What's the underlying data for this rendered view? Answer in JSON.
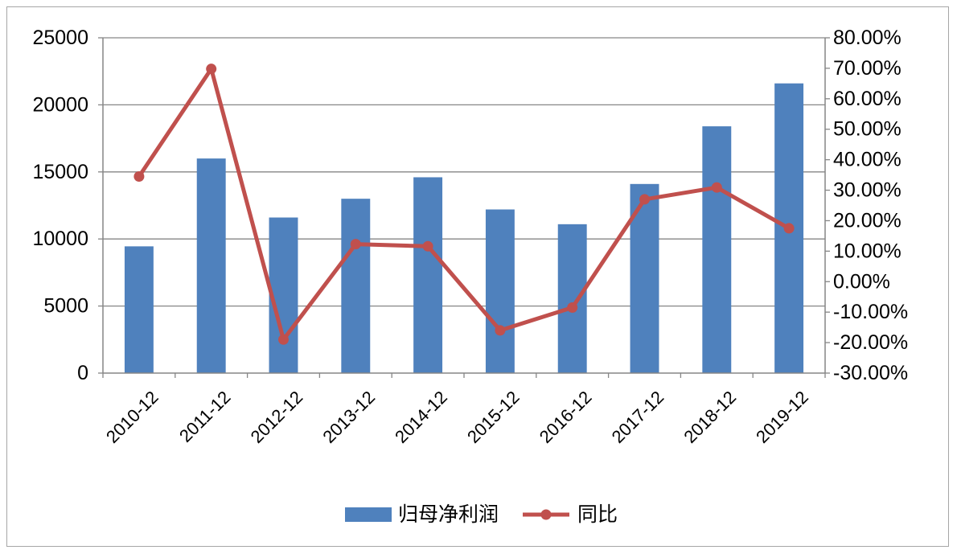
{
  "chart_data": {
    "type": "bar+line",
    "categories": [
      "2010-12",
      "2011-12",
      "2012-12",
      "2013-12",
      "2014-12",
      "2015-12",
      "2016-12",
      "2017-12",
      "2018-12",
      "2019-12"
    ],
    "series": [
      {
        "name": "归母净利润",
        "type": "bar",
        "axis": "left",
        "color": "#4f81bd",
        "values": [
          9450,
          16000,
          11600,
          13000,
          14600,
          12200,
          11100,
          14100,
          18400,
          21600
        ]
      },
      {
        "name": "同比",
        "type": "line",
        "axis": "right",
        "color": "#c0504d",
        "values": [
          34.5,
          69.8,
          -19.0,
          12.3,
          11.6,
          -16.0,
          -8.5,
          27.0,
          30.9,
          17.5
        ]
      }
    ],
    "y_left": {
      "ylim": [
        0,
        25000
      ],
      "ticks": [
        0,
        5000,
        10000,
        15000,
        20000,
        25000
      ],
      "tick_labels": [
        "0",
        "5000",
        "10000",
        "15000",
        "20000",
        "25000"
      ]
    },
    "y_right": {
      "ylim": [
        -30,
        80
      ],
      "ticks": [
        -30,
        -20,
        -10,
        0,
        10,
        20,
        30,
        40,
        50,
        60,
        70,
        80
      ],
      "tick_labels": [
        "-30.00%",
        "-20.00%",
        "-10.00%",
        "0.00%",
        "10.00%",
        "20.00%",
        "30.00%",
        "40.00%",
        "50.00%",
        "60.00%",
        "70.00%",
        "80.00%"
      ]
    },
    "grid": true,
    "legend_position": "bottom",
    "title": "",
    "xlabel": "",
    "ylabel": ""
  },
  "colors": {
    "bar": "#4f81bd",
    "line": "#c0504d",
    "grid": "#868686",
    "axis": "#868686",
    "frame": "#a6a6a6"
  }
}
